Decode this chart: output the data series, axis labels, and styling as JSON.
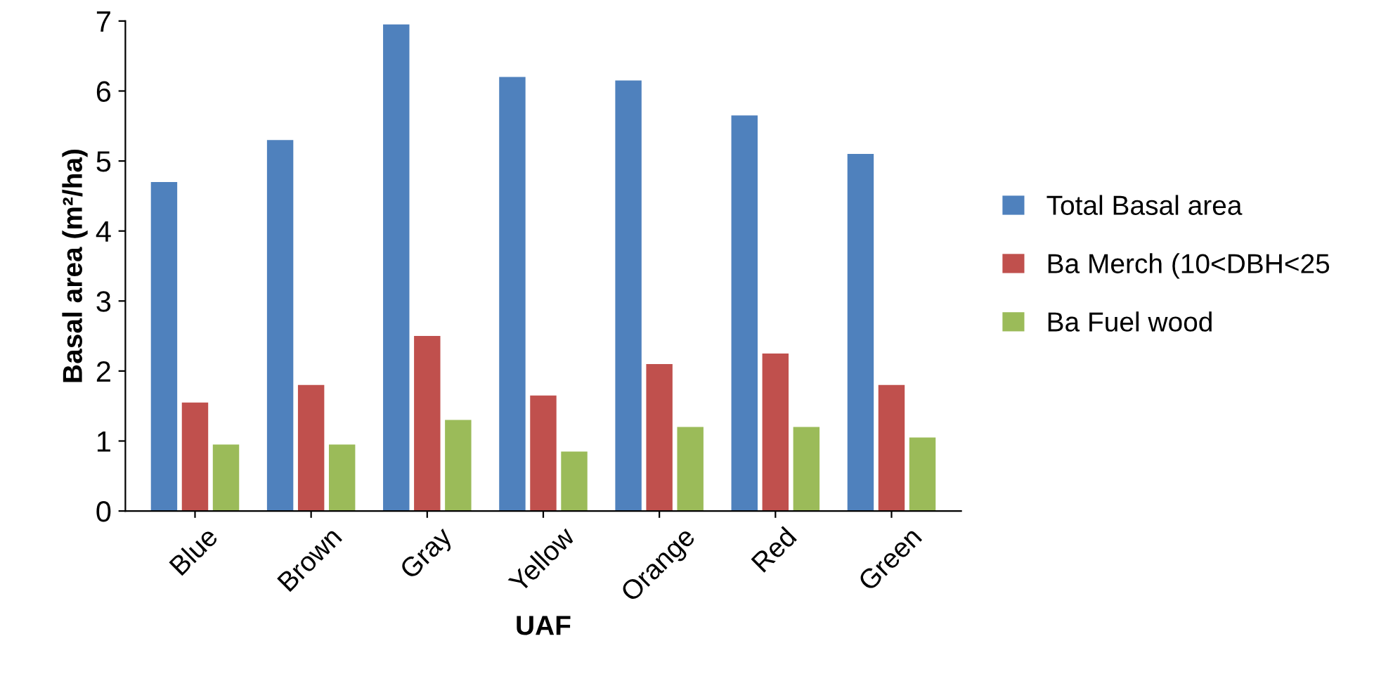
{
  "chart_data": {
    "type": "bar",
    "xlabel": "UAF",
    "ylabel": "Basal area (m²/ha)",
    "categories": [
      "Blue",
      "Brown",
      "Gray",
      "Yellow",
      "Orange",
      "Red",
      "Green"
    ],
    "series": [
      {
        "name": "Total Basal area",
        "color": "#4f81bd",
        "values": [
          4.7,
          5.3,
          6.95,
          6.2,
          6.15,
          5.65,
          5.1
        ]
      },
      {
        "name": "Ba Merch (10<DBH<25",
        "color": "#c0504d",
        "values": [
          1.55,
          1.8,
          2.5,
          1.65,
          2.1,
          2.25,
          1.8
        ]
      },
      {
        "name": "Ba Fuel wood",
        "color": "#9bbb59",
        "values": [
          0.95,
          0.95,
          1.3,
          0.85,
          1.2,
          1.2,
          1.05
        ]
      }
    ],
    "ylim": [
      0,
      7
    ],
    "yticks": [
      0,
      1,
      2,
      3,
      4,
      5,
      6,
      7
    ],
    "grid": false,
    "legend": "right"
  }
}
